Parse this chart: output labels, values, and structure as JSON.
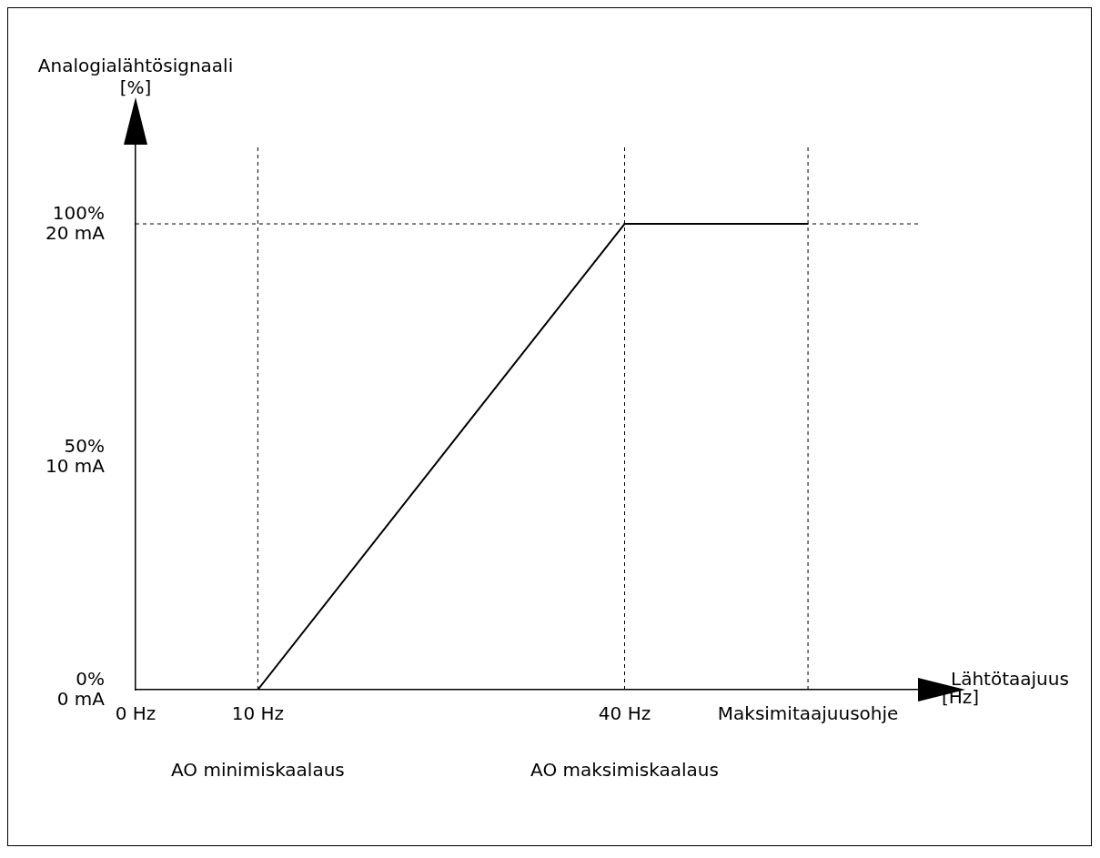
{
  "chart_data": {
    "type": "line",
    "xlabel": "Lähtötaajuus [Hz]",
    "ylabel": "Analogialähtösignaali [%]",
    "x": [
      0,
      10,
      40,
      55
    ],
    "series": [
      {
        "color": "#000000",
        "values": [
          0,
          0,
          100,
          100
        ]
      }
    ],
    "xlim": [
      0,
      64
    ],
    "xticks": [
      {
        "value": 0,
        "label": "0 Hz"
      },
      {
        "value": 10,
        "label": "10 Hz"
      },
      {
        "value": 40,
        "label": "40 Hz"
      },
      {
        "value": 55,
        "label": "Maksimitaajuusohje"
      }
    ],
    "ylim": [
      0,
      117
    ],
    "yticks": [
      {
        "value": 0,
        "label": "0%"
      },
      {
        "value": 50,
        "label": "50%"
      },
      {
        "value": 100,
        "label": "100%"
      }
    ],
    "y2lim": [
      0,
      23.4
    ],
    "y2ticks": [
      {
        "value": 0,
        "label": "0 mA"
      },
      {
        "value": 10,
        "label": "10 mA"
      },
      {
        "value": 20,
        "label": "20 mA"
      }
    ],
    "ref_lines": [
      {
        "axis": "x",
        "value": 10,
        "line_style": "dashed"
      },
      {
        "axis": "x",
        "value": 40,
        "line_style": "dashed"
      },
      {
        "axis": "x",
        "value": 55,
        "line_style": "dashed"
      },
      {
        "axis": "y",
        "value": 100,
        "line_style": "dashed"
      }
    ],
    "annotations": [
      "AO minimiskaalaus",
      "AO maksimiskaalaus"
    ],
    "grid": false,
    "legend": false,
    "marker": "none",
    "line_style": "solid"
  }
}
